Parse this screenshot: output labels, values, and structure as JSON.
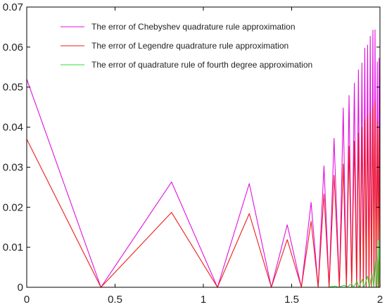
{
  "chart_data": {
    "type": "line",
    "title": "",
    "xlabel": "",
    "ylabel": "",
    "xlim": [
      0,
      2
    ],
    "ylim": [
      0,
      0.07
    ],
    "x_ticks": [
      "0",
      "0.5",
      "1",
      "1.5",
      "2"
    ],
    "y_ticks": [
      "0",
      "0.01",
      "0.02",
      "0.03",
      "0.04",
      "0.05",
      "0.06",
      "0.07"
    ],
    "grid": false,
    "legend_position": "top",
    "series": [
      {
        "name": "The error of Chebyshev quadrature rule approximation",
        "color": "#e010e0",
        "x": [
          0,
          0.42,
          0.82,
          1.08,
          1.26,
          1.385,
          1.475,
          1.555,
          1.61,
          1.65,
          1.683,
          1.712,
          1.74,
          1.77,
          1.792,
          1.81,
          1.825,
          1.84,
          1.855,
          1.868,
          1.878,
          1.888,
          1.898,
          1.906,
          1.914,
          1.922,
          1.93,
          1.938,
          1.945,
          1.952,
          1.96,
          1.966,
          1.972,
          1.978,
          1.985,
          1.99,
          1.995,
          2.0
        ],
        "y": [
          0.052,
          0.0,
          0.0263,
          0.0,
          0.0259,
          0.0,
          0.0156,
          0.0,
          0.0212,
          0.0,
          0.0303,
          0.0,
          0.0372,
          0.0,
          0.0448,
          0.0,
          0.0479,
          0.0,
          0.051,
          0.0,
          0.0543,
          0.0,
          0.056,
          0.0,
          0.0597,
          0.0,
          0.0605,
          0.0,
          0.0627,
          0.0,
          0.0642,
          0.0,
          0.0643,
          0.0,
          0.0563,
          0.0,
          0.0572,
          0.0
        ]
      },
      {
        "name": "The error of Legendre quadrature rule approximation",
        "color": "#ee1c1c",
        "x": [
          0,
          0.42,
          0.82,
          1.08,
          1.26,
          1.385,
          1.475,
          1.555,
          1.61,
          1.65,
          1.683,
          1.712,
          1.74,
          1.77,
          1.792,
          1.81,
          1.825,
          1.84,
          1.855,
          1.868,
          1.878,
          1.888,
          1.898,
          1.906,
          1.914,
          1.922,
          1.93,
          1.938,
          1.945,
          1.952,
          1.96,
          1.966,
          1.972,
          1.978,
          1.985,
          1.99,
          1.995,
          2.0
        ],
        "y": [
          0.037,
          0.0,
          0.0187,
          0.0,
          0.0184,
          0.0,
          0.0119,
          0.0,
          0.0165,
          0.0,
          0.0233,
          0.0,
          0.028,
          0.0,
          0.0308,
          0.0,
          0.0352,
          0.0,
          0.0365,
          0.0,
          0.0385,
          0.0,
          0.04,
          0.0,
          0.0418,
          0.0,
          0.043,
          0.0,
          0.044,
          0.0,
          0.045,
          0.0,
          0.0465,
          0.0,
          0.0415,
          0.0,
          0.04,
          0.0
        ]
      },
      {
        "name": "The error of quadrature rule of fourth degree approximation",
        "color": "#33dd33",
        "x": [
          0,
          1.7,
          1.75,
          1.76,
          1.8,
          1.81,
          1.84,
          1.85,
          1.87,
          1.88,
          1.9,
          1.91,
          1.93,
          1.94,
          1.955,
          1.965,
          1.975,
          1.982,
          1.99,
          1.995,
          2.0
        ],
        "y": [
          0.0,
          0.0,
          0.0003,
          0.0,
          0.0005,
          0.0,
          0.0009,
          0.0,
          0.0015,
          0.0,
          0.002,
          0.0,
          0.0028,
          0.0,
          0.0035,
          0.0,
          0.0065,
          0.0,
          0.0117,
          0.0,
          0.0155
        ]
      }
    ]
  }
}
